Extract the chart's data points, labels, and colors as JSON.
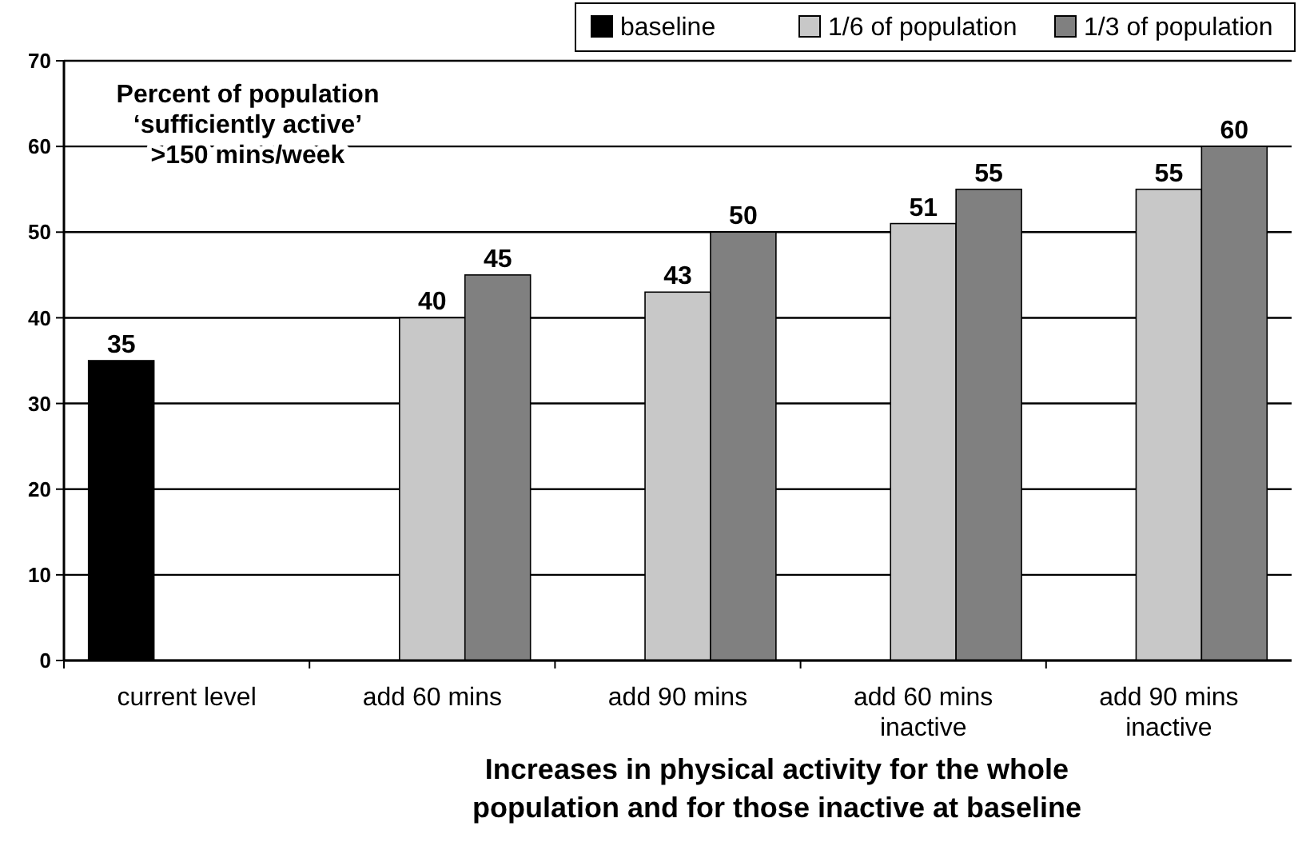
{
  "chart_data": {
    "type": "bar",
    "title": "Percent of population\n‘sufficiently active’\n>150 mins/week",
    "xlabel": "Increases in physical activity for the whole\npopulation and for those inactive at baseline",
    "categories": [
      "current level",
      "add 60 mins",
      "add 90 mins",
      "add 60 mins\ninactive",
      "add 90 mins\ninactive"
    ],
    "series": [
      {
        "name": "baseline",
        "color": "#000000",
        "values": [
          35,
          null,
          null,
          null,
          null
        ]
      },
      {
        "name": "1/6 of population",
        "color": "#c8c8c8",
        "values": [
          null,
          40,
          43,
          51,
          55
        ]
      },
      {
        "name": "1/3 of population",
        "color": "#808080",
        "values": [
          null,
          45,
          50,
          55,
          60
        ]
      }
    ],
    "ylim": [
      0,
      70
    ],
    "yticks": [
      0,
      10,
      20,
      30,
      40,
      50,
      60,
      70
    ],
    "grid": "y",
    "legend": "top right",
    "data_labels": true
  }
}
